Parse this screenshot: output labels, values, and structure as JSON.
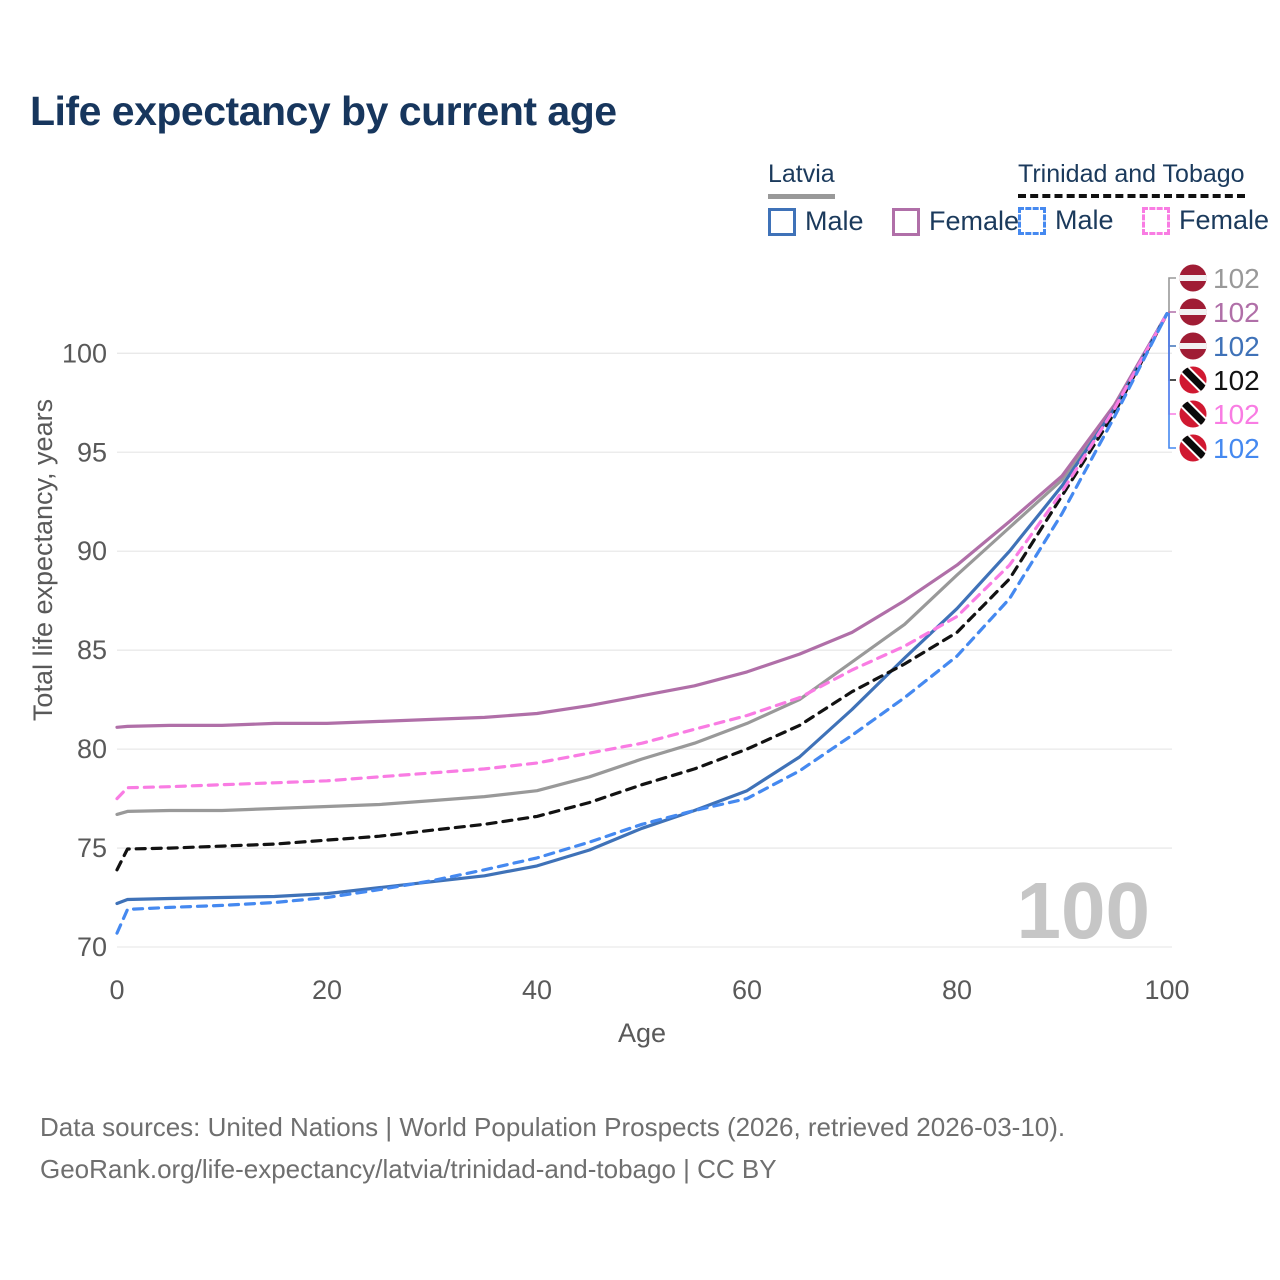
{
  "title": "Life expectancy by current age",
  "legend": {
    "groups": [
      {
        "id": "latvia",
        "label": "Latvia",
        "line_style": "solid",
        "line_color": "#999999",
        "items": [
          {
            "id": "male",
            "label": "Male",
            "color": "#3f72b8",
            "dashed": false
          },
          {
            "id": "female",
            "label": "Female",
            "color": "#b06fa8",
            "dashed": false
          }
        ]
      },
      {
        "id": "trinidad-and-tobago",
        "label": "Trinidad and Tobago",
        "line_style": "dashed",
        "line_color": "#111111",
        "items": [
          {
            "id": "male",
            "label": "Male",
            "color": "#4589f0",
            "dashed": true
          },
          {
            "id": "female",
            "label": "Female",
            "color": "#f97ce3",
            "dashed": true
          }
        ]
      }
    ]
  },
  "chart_data": {
    "type": "line",
    "title": "Life expectancy by current age",
    "xlabel": "Age",
    "ylabel": "Total life expectancy, years",
    "xlim": [
      0,
      100
    ],
    "ylim": [
      70,
      103.2
    ],
    "x_ticks": [
      0,
      20,
      40,
      60,
      80,
      100
    ],
    "y_ticks": [
      70,
      75,
      80,
      85,
      90,
      95,
      100
    ],
    "grid": "horizontal-only",
    "gridline_color": "#e9e9e9",
    "axis_text_color": "#595959",
    "watermark": "100",
    "watermark_color": "#c6c6c6",
    "x": [
      0,
      1,
      5,
      10,
      15,
      20,
      25,
      30,
      35,
      40,
      45,
      50,
      55,
      60,
      65,
      70,
      75,
      80,
      85,
      90,
      95,
      100
    ],
    "series": [
      {
        "name": "Latvia — Total",
        "country": "Latvia",
        "sex": "Total",
        "color": "#999999",
        "dashed": false,
        "flag": "lv",
        "end_label": "102",
        "values": [
          76.7,
          76.85,
          76.9,
          76.9,
          77.0,
          77.1,
          77.2,
          77.4,
          77.6,
          77.9,
          78.6,
          79.5,
          80.3,
          81.3,
          82.5,
          84.4,
          86.3,
          88.8,
          91.2,
          93.6,
          97.3,
          102.0
        ]
      },
      {
        "name": "Latvia — Female",
        "country": "Latvia",
        "sex": "Female",
        "color": "#b06fa8",
        "dashed": false,
        "flag": "lv",
        "end_label": "102",
        "values": [
          81.1,
          81.15,
          81.2,
          81.2,
          81.3,
          81.3,
          81.4,
          81.5,
          81.6,
          81.8,
          82.2,
          82.7,
          83.2,
          83.9,
          84.8,
          85.9,
          87.5,
          89.3,
          91.5,
          93.8,
          97.4,
          102.0
        ]
      },
      {
        "name": "Latvia — Male",
        "country": "Latvia",
        "sex": "Male",
        "color": "#3f72b8",
        "dashed": false,
        "flag": "lv",
        "end_label": "102",
        "values": [
          72.2,
          72.4,
          72.45,
          72.5,
          72.55,
          72.7,
          73.0,
          73.3,
          73.6,
          74.1,
          74.9,
          76.0,
          76.9,
          77.9,
          79.6,
          82.0,
          84.6,
          87.1,
          90.0,
          93.3,
          97.2,
          102.0
        ]
      },
      {
        "name": "Trinidad and Tobago — Total",
        "country": "Trinidad and Tobago",
        "sex": "Total",
        "color": "#121212",
        "dashed": true,
        "flag": "tt",
        "end_label": "102",
        "values": [
          73.9,
          74.95,
          75.0,
          75.1,
          75.2,
          75.4,
          75.6,
          75.9,
          76.2,
          76.6,
          77.3,
          78.2,
          79.0,
          80.0,
          81.2,
          82.9,
          84.3,
          85.9,
          88.6,
          92.8,
          97.0,
          102.0
        ]
      },
      {
        "name": "Trinidad and Tobago — Female",
        "country": "Trinidad and Tobago",
        "sex": "Female",
        "color": "#f97ce3",
        "dashed": true,
        "flag": "tt",
        "end_label": "102",
        "values": [
          77.5,
          78.05,
          78.1,
          78.2,
          78.3,
          78.4,
          78.6,
          78.8,
          79.0,
          79.3,
          79.8,
          80.3,
          81.0,
          81.7,
          82.6,
          84.0,
          85.2,
          86.7,
          89.3,
          93.0,
          97.2,
          102.0
        ]
      },
      {
        "name": "Trinidad and Tobago — Male",
        "country": "Trinidad and Tobago",
        "sex": "Male",
        "color": "#4589f0",
        "dashed": true,
        "flag": "tt",
        "end_label": "102",
        "values": [
          70.7,
          71.9,
          72.0,
          72.1,
          72.25,
          72.5,
          72.9,
          73.35,
          73.9,
          74.5,
          75.3,
          76.2,
          76.9,
          77.5,
          78.9,
          80.7,
          82.6,
          84.7,
          87.6,
          91.9,
          96.8,
          102.0
        ]
      }
    ],
    "flag_colors": {
      "latvia_carmine": "#a01d35",
      "latvia_white": "#f2f2f2",
      "trinidad_red": "#d01931",
      "trinidad_black": "#0a0a0a",
      "trinidad_white": "#ffffff"
    }
  },
  "footer": {
    "line1": "Data sources: United Nations | World Population Prospects (2026, retrieved 2026-03-10).",
    "line2": "GeoRank.org/life-expectancy/latvia/trinidad-and-tobago | CC BY"
  }
}
